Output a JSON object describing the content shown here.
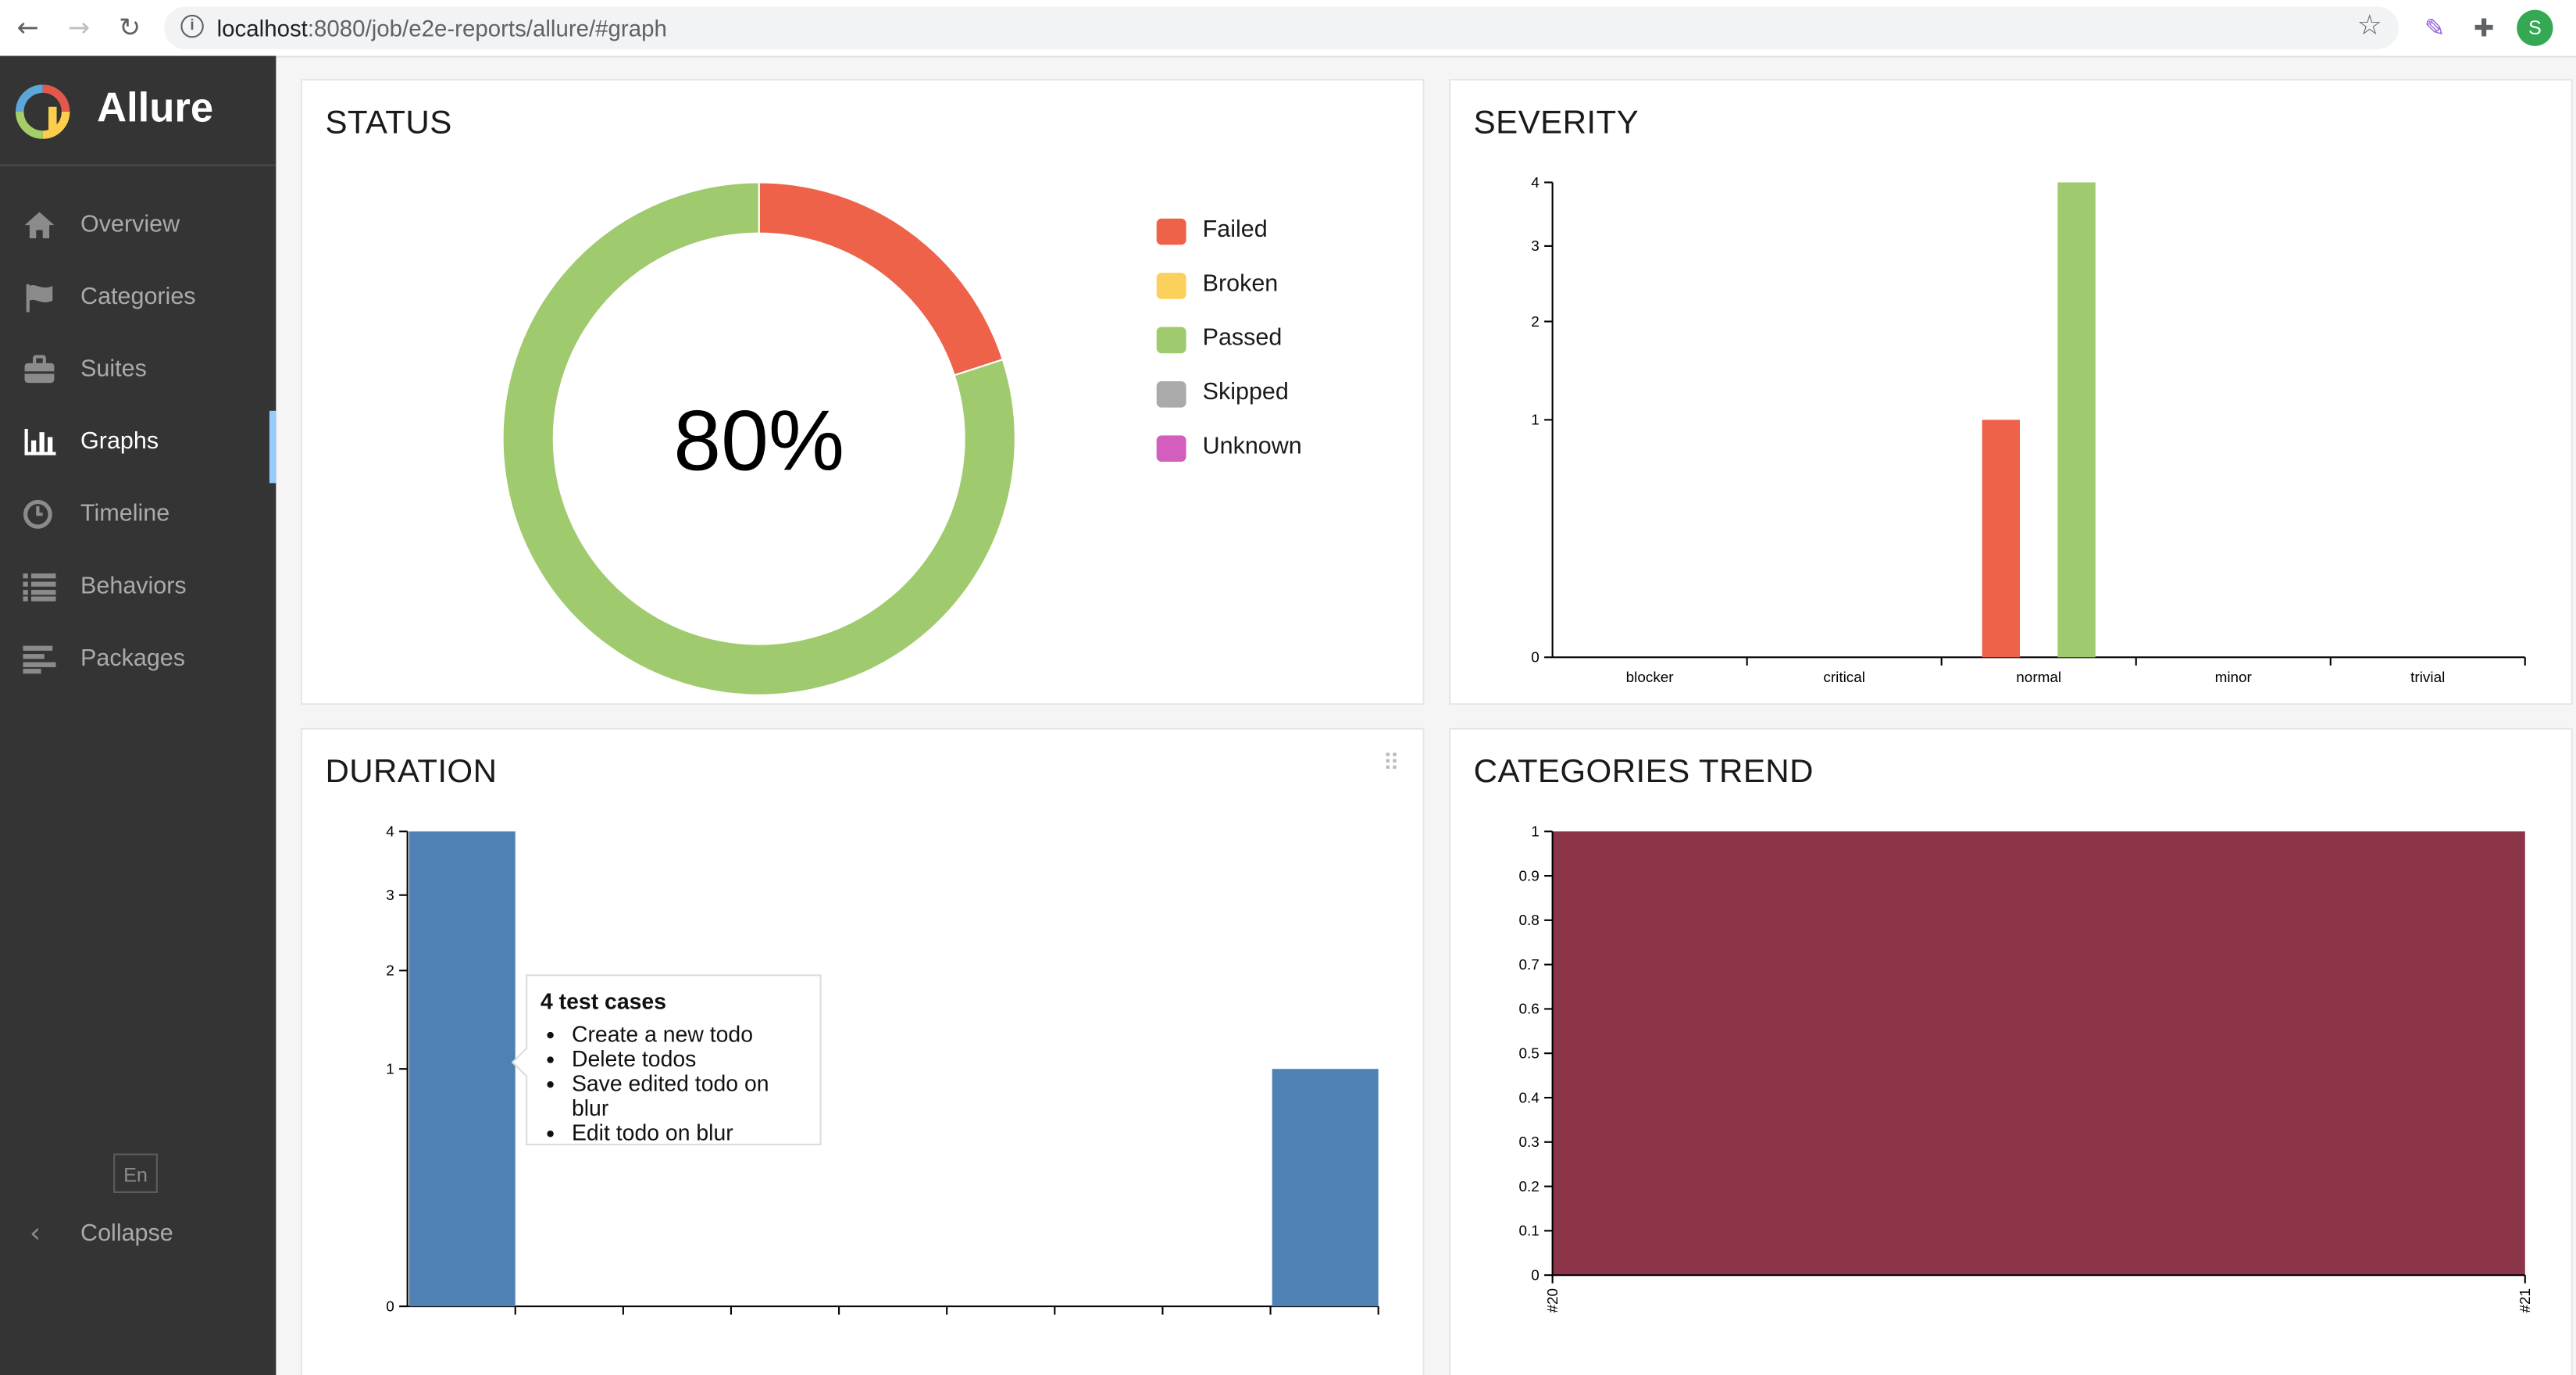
{
  "browser": {
    "url_host": "localhost",
    "url_path": ":8080/job/e2e-reports/allure/#graph",
    "avatar_letter": "S"
  },
  "sidebar": {
    "brand": "Allure",
    "items": [
      {
        "label": "Overview",
        "icon": "home-icon"
      },
      {
        "label": "Categories",
        "icon": "flag-icon"
      },
      {
        "label": "Suites",
        "icon": "briefcase-icon"
      },
      {
        "label": "Graphs",
        "icon": "bar-chart-icon",
        "active": true
      },
      {
        "label": "Timeline",
        "icon": "clock-icon"
      },
      {
        "label": "Behaviors",
        "icon": "list-icon"
      },
      {
        "label": "Packages",
        "icon": "align-left-icon"
      }
    ],
    "language": "En",
    "collapse_label": "Collapse"
  },
  "widgets": {
    "status": {
      "title": "STATUS",
      "center_label": "80%"
    },
    "severity": {
      "title": "SEVERITY"
    },
    "duration": {
      "title": "DURATION"
    },
    "categories_trend": {
      "title": "CATEGORIES TREND"
    }
  },
  "legend": [
    {
      "label": "Failed",
      "color": "#ed6249"
    },
    {
      "label": "Broken",
      "color": "#fcd05c"
    },
    {
      "label": "Passed",
      "color": "#a0ca6e"
    },
    {
      "label": "Skipped",
      "color": "#aaaaaa"
    },
    {
      "label": "Unknown",
      "color": "#d35ebe"
    }
  ],
  "tooltip": {
    "title": "4 test cases",
    "items": [
      "Create a new todo",
      "Delete todos",
      "Save edited todo on blur",
      "Edit todo on blur"
    ]
  },
  "chart_data": [
    {
      "type": "pie",
      "title": "STATUS",
      "center_label": "80%",
      "categories": [
        "Failed",
        "Broken",
        "Passed",
        "Skipped",
        "Unknown"
      ],
      "values": [
        1,
        0,
        4,
        0,
        0
      ],
      "colors": [
        "#ed6249",
        "#fcd05c",
        "#a0ca6e",
        "#aaaaaa",
        "#d35ebe"
      ],
      "legend": "right"
    },
    {
      "type": "bar",
      "title": "SEVERITY",
      "categories": [
        "blocker",
        "critical",
        "normal",
        "minor",
        "trivial"
      ],
      "series": [
        {
          "name": "Failed",
          "color": "#ed6249",
          "values": [
            0,
            0,
            1,
            0,
            0
          ]
        },
        {
          "name": "Passed",
          "color": "#a0ca6e",
          "values": [
            0,
            0,
            4,
            0,
            0
          ]
        }
      ],
      "yticks": [
        "0",
        "1",
        "2",
        "3",
        "4"
      ],
      "ylim": [
        0,
        4
      ]
    },
    {
      "type": "bar",
      "title": "DURATION",
      "bins": 9,
      "values": [
        4,
        0,
        0,
        0,
        0,
        0,
        0,
        0,
        1
      ],
      "color": "#4f81b5",
      "yticks": [
        "0",
        "1",
        "2",
        "3",
        "4"
      ],
      "ylim": [
        0,
        4
      ]
    },
    {
      "type": "area",
      "title": "CATEGORIES TREND",
      "x": [
        "#20",
        "#21"
      ],
      "series": [
        {
          "color": "#8c3548",
          "values": [
            1,
            1
          ]
        }
      ],
      "yticks": [
        "0",
        "0.1",
        "0.2",
        "0.3",
        "0.4",
        "0.5",
        "0.6",
        "0.7",
        "0.8",
        "0.9",
        "1"
      ],
      "ylim": [
        0,
        1
      ]
    }
  ]
}
